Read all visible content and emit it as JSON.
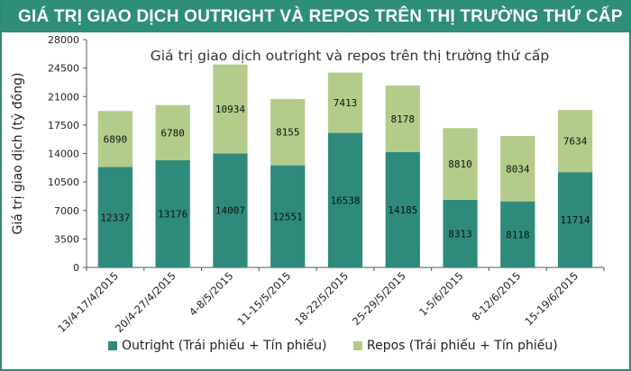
{
  "header": {
    "title": "GIÁ TRỊ GIAO DỊCH OUTRIGHT VÀ REPOS TRÊN THỊ TRƯỜNG THỨ CẤP"
  },
  "colors": {
    "outright": "#2e8b7c",
    "repos": "#b3cc8a",
    "banner": "#2e8e78"
  },
  "chart_data": {
    "type": "bar",
    "stacked": true,
    "title": "Giá trị giao dịch outright và repos trên thị trường thứ cấp",
    "ylabel": "Giá trị giao dịch (tỷ đồng)",
    "xlabel": "",
    "ylim": [
      0,
      28000
    ],
    "yticks": [
      "0",
      "3500",
      "7000",
      "10500",
      "14000",
      "17500",
      "21000",
      "24500",
      "28000"
    ],
    "categories": [
      "13/4-17/4/2015",
      "20/4-27/4/2015",
      "4-8/5/2015",
      "11-15/5/2015",
      "18-22/5/2015",
      "25-29/5/2015",
      "1-5/6/2015",
      "8-12/6/2015",
      "15-19/6/2015"
    ],
    "series": [
      {
        "name": "Outright (Trái phiếu + Tín phiếu)",
        "values": [
          12337,
          13176,
          14007,
          12551,
          16538,
          14185,
          8313,
          8118,
          11714
        ]
      },
      {
        "name": "Repos (Trái phiếu + Tín phiếu)",
        "values": [
          6890,
          6780,
          10934,
          8155,
          7413,
          8178,
          8810,
          8034,
          7634
        ]
      }
    ],
    "legend": "bottom"
  }
}
